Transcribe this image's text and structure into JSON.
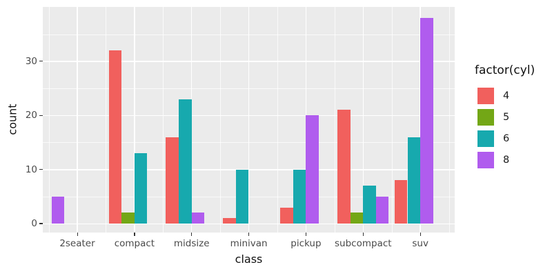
{
  "style": {
    "figure_background": "#FFFFFF",
    "panel_background": "#EBEBEB",
    "grid_color": "#FFFFFF",
    "tick_color": "#333333",
    "tick_label_color": "#4A4A4A",
    "title_color": "#111111"
  },
  "chart_data": {
    "type": "bar",
    "title": "",
    "xlabel": "class",
    "ylabel": "count",
    "legend_title": "factor(cyl)",
    "legend_position": "right",
    "grid": true,
    "bar_layout": "dodged, packed left within category",
    "categories": [
      "2seater",
      "compact",
      "midsize",
      "minivan",
      "pickup",
      "subcompact",
      "suv"
    ],
    "series": [
      {
        "name": "4",
        "color": "#F1605D",
        "values": [
          0,
          32,
          16,
          1,
          3,
          21,
          8
        ]
      },
      {
        "name": "5",
        "color": "#73A716",
        "values": [
          0,
          2,
          0,
          0,
          0,
          2,
          0
        ]
      },
      {
        "name": "6",
        "color": "#17A9AE",
        "values": [
          0,
          13,
          23,
          10,
          10,
          7,
          16
        ]
      },
      {
        "name": "8",
        "color": "#B05CEE",
        "values": [
          5,
          0,
          2,
          0,
          20,
          5,
          38
        ]
      }
    ],
    "y_ticks": [
      0,
      10,
      20,
      30
    ],
    "y_minor_ticks": [
      5,
      15,
      25,
      35
    ],
    "ylim": [
      0,
      39.9
    ]
  }
}
